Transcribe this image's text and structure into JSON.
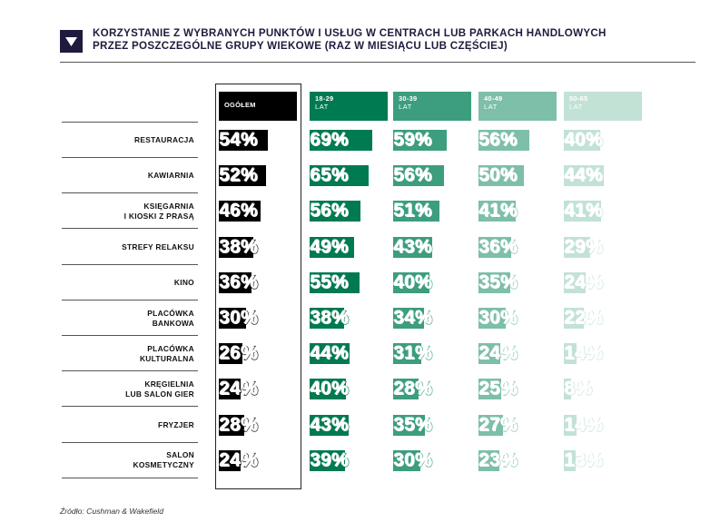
{
  "header": {
    "title_line1": "KORZYSTANIE Z WYBRANYCH PUNKTÓW I USŁUG W CENTRACH LUB PARKACH HANDLOWYCH",
    "title_line2": "PRZEZ POSZCZEGÓLNE GRUPY WIEKOWE (RAZ W MIESIĄCU LUB CZĘŚCIEJ)",
    "icon": "triangle-down-icon"
  },
  "source": "Źródło: Cushman & Wakefield",
  "chart_data": {
    "type": "table",
    "title": "KORZYSTANIE Z WYBRANYCH PUNKTÓW I USŁUG W CENTRACH LUB PARKACH HANDLOWYCH PRZEZ POSZCZEGÓLNE GRUPY WIEKOWE (RAZ W MIESIĄCU LUB CZĘŚCIEJ)",
    "value_range": [
      0,
      100
    ],
    "unit": "%",
    "columns": [
      {
        "name": "OGÓŁEM",
        "sub": "",
        "color": "#000000"
      },
      {
        "name": "18-29",
        "sub": "LAT",
        "color": "#007a50"
      },
      {
        "name": "30-39",
        "sub": "LAT",
        "color": "#3c9d7f"
      },
      {
        "name": "40-49",
        "sub": "LAT",
        "color": "#7dbfa8"
      },
      {
        "name": "50-65",
        "sub": "LAT",
        "color": "#c2e2d6"
      }
    ],
    "rows": [
      {
        "label": [
          "RESTAURACJA"
        ],
        "values": [
          54,
          69,
          59,
          56,
          40
        ]
      },
      {
        "label": [
          "KAWIARNIA"
        ],
        "values": [
          52,
          65,
          56,
          50,
          44
        ]
      },
      {
        "label": [
          "KSIĘGARNIA",
          "I KIOSKI Z PRASĄ"
        ],
        "values": [
          46,
          56,
          51,
          41,
          41
        ]
      },
      {
        "label": [
          "STREFY RELAKSU"
        ],
        "values": [
          38,
          49,
          43,
          36,
          29
        ]
      },
      {
        "label": [
          "KINO"
        ],
        "values": [
          36,
          55,
          40,
          35,
          24
        ]
      },
      {
        "label": [
          "PLACÓWKA",
          "BANKOWA"
        ],
        "values": [
          30,
          38,
          34,
          30,
          22
        ]
      },
      {
        "label": [
          "PLACÓWKA",
          "KULTURALNA"
        ],
        "values": [
          26,
          44,
          31,
          24,
          14
        ]
      },
      {
        "label": [
          "KRĘGIELNIA",
          "LUB SALON GIER"
        ],
        "values": [
          24,
          40,
          28,
          25,
          8
        ]
      },
      {
        "label": [
          "FRYZJER"
        ],
        "values": [
          28,
          43,
          35,
          27,
          14
        ]
      },
      {
        "label": [
          "SALON",
          "KOSMETYCZNY"
        ],
        "values": [
          24,
          39,
          30,
          23,
          13
        ]
      }
    ]
  }
}
